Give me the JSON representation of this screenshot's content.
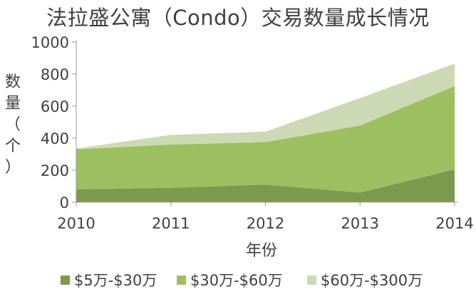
{
  "chart_data": {
    "type": "area",
    "stacked": true,
    "title": "法拉盛公寓（Condo）交易数量成长情况",
    "xlabel": "年份",
    "ylabel": "数量（个）",
    "x": [
      "2010",
      "2011",
      "2012",
      "2013",
      "2014"
    ],
    "ylim": [
      0,
      1000
    ],
    "yticks": [
      0,
      200,
      400,
      600,
      800,
      1000
    ],
    "grid": false,
    "legend_position": "bottom",
    "series": [
      {
        "name": "$5万-$30万",
        "values": [
          80,
          90,
          110,
          60,
          205
        ],
        "color": "#7c9a4e"
      },
      {
        "name": "$30万-$60万",
        "values": [
          250,
          270,
          265,
          418,
          520
        ],
        "color": "#9cc05f"
      },
      {
        "name": "$60万-$300万",
        "values": [
          5,
          60,
          65,
          172,
          140
        ],
        "color": "#cdd9b4"
      }
    ]
  }
}
